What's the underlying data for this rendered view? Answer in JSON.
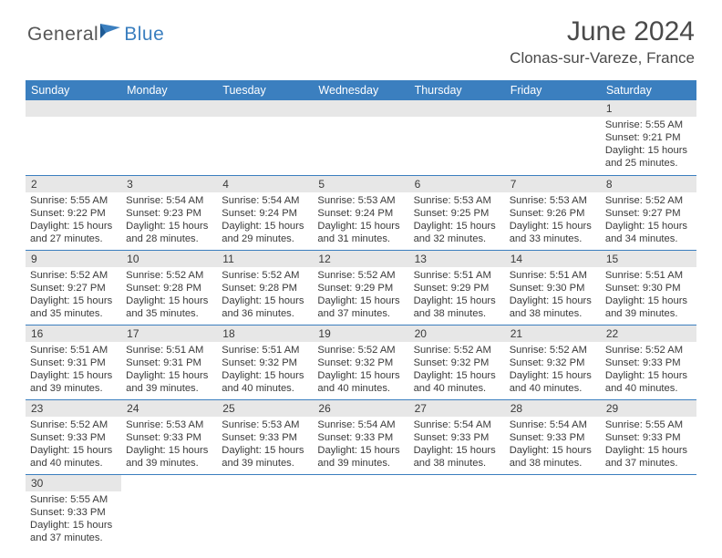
{
  "brand": {
    "part1": "General",
    "part2": "Blue"
  },
  "title": "June 2024",
  "location": "Clonas-sur-Vareze, France",
  "colors": {
    "headerBar": "#3b7fbf",
    "dayStripe": "#e7e7e7",
    "rowBorder": "#3b7fbf",
    "text": "#3a3a3a",
    "logoBlue": "#3b7fbf",
    "background": "#ffffff"
  },
  "weekdays": [
    "Sunday",
    "Monday",
    "Tuesday",
    "Wednesday",
    "Thursday",
    "Friday",
    "Saturday"
  ],
  "weeks": [
    [
      {
        "n": "",
        "sr": "",
        "ss": "",
        "dl": ""
      },
      {
        "n": "",
        "sr": "",
        "ss": "",
        "dl": ""
      },
      {
        "n": "",
        "sr": "",
        "ss": "",
        "dl": ""
      },
      {
        "n": "",
        "sr": "",
        "ss": "",
        "dl": ""
      },
      {
        "n": "",
        "sr": "",
        "ss": "",
        "dl": ""
      },
      {
        "n": "",
        "sr": "",
        "ss": "",
        "dl": ""
      },
      {
        "n": "1",
        "sr": "Sunrise: 5:55 AM",
        "ss": "Sunset: 9:21 PM",
        "dl": "Daylight: 15 hours and 25 minutes."
      }
    ],
    [
      {
        "n": "2",
        "sr": "Sunrise: 5:55 AM",
        "ss": "Sunset: 9:22 PM",
        "dl": "Daylight: 15 hours and 27 minutes."
      },
      {
        "n": "3",
        "sr": "Sunrise: 5:54 AM",
        "ss": "Sunset: 9:23 PM",
        "dl": "Daylight: 15 hours and 28 minutes."
      },
      {
        "n": "4",
        "sr": "Sunrise: 5:54 AM",
        "ss": "Sunset: 9:24 PM",
        "dl": "Daylight: 15 hours and 29 minutes."
      },
      {
        "n": "5",
        "sr": "Sunrise: 5:53 AM",
        "ss": "Sunset: 9:24 PM",
        "dl": "Daylight: 15 hours and 31 minutes."
      },
      {
        "n": "6",
        "sr": "Sunrise: 5:53 AM",
        "ss": "Sunset: 9:25 PM",
        "dl": "Daylight: 15 hours and 32 minutes."
      },
      {
        "n": "7",
        "sr": "Sunrise: 5:53 AM",
        "ss": "Sunset: 9:26 PM",
        "dl": "Daylight: 15 hours and 33 minutes."
      },
      {
        "n": "8",
        "sr": "Sunrise: 5:52 AM",
        "ss": "Sunset: 9:27 PM",
        "dl": "Daylight: 15 hours and 34 minutes."
      }
    ],
    [
      {
        "n": "9",
        "sr": "Sunrise: 5:52 AM",
        "ss": "Sunset: 9:27 PM",
        "dl": "Daylight: 15 hours and 35 minutes."
      },
      {
        "n": "10",
        "sr": "Sunrise: 5:52 AM",
        "ss": "Sunset: 9:28 PM",
        "dl": "Daylight: 15 hours and 35 minutes."
      },
      {
        "n": "11",
        "sr": "Sunrise: 5:52 AM",
        "ss": "Sunset: 9:28 PM",
        "dl": "Daylight: 15 hours and 36 minutes."
      },
      {
        "n": "12",
        "sr": "Sunrise: 5:52 AM",
        "ss": "Sunset: 9:29 PM",
        "dl": "Daylight: 15 hours and 37 minutes."
      },
      {
        "n": "13",
        "sr": "Sunrise: 5:51 AM",
        "ss": "Sunset: 9:29 PM",
        "dl": "Daylight: 15 hours and 38 minutes."
      },
      {
        "n": "14",
        "sr": "Sunrise: 5:51 AM",
        "ss": "Sunset: 9:30 PM",
        "dl": "Daylight: 15 hours and 38 minutes."
      },
      {
        "n": "15",
        "sr": "Sunrise: 5:51 AM",
        "ss": "Sunset: 9:30 PM",
        "dl": "Daylight: 15 hours and 39 minutes."
      }
    ],
    [
      {
        "n": "16",
        "sr": "Sunrise: 5:51 AM",
        "ss": "Sunset: 9:31 PM",
        "dl": "Daylight: 15 hours and 39 minutes."
      },
      {
        "n": "17",
        "sr": "Sunrise: 5:51 AM",
        "ss": "Sunset: 9:31 PM",
        "dl": "Daylight: 15 hours and 39 minutes."
      },
      {
        "n": "18",
        "sr": "Sunrise: 5:51 AM",
        "ss": "Sunset: 9:32 PM",
        "dl": "Daylight: 15 hours and 40 minutes."
      },
      {
        "n": "19",
        "sr": "Sunrise: 5:52 AM",
        "ss": "Sunset: 9:32 PM",
        "dl": "Daylight: 15 hours and 40 minutes."
      },
      {
        "n": "20",
        "sr": "Sunrise: 5:52 AM",
        "ss": "Sunset: 9:32 PM",
        "dl": "Daylight: 15 hours and 40 minutes."
      },
      {
        "n": "21",
        "sr": "Sunrise: 5:52 AM",
        "ss": "Sunset: 9:32 PM",
        "dl": "Daylight: 15 hours and 40 minutes."
      },
      {
        "n": "22",
        "sr": "Sunrise: 5:52 AM",
        "ss": "Sunset: 9:33 PM",
        "dl": "Daylight: 15 hours and 40 minutes."
      }
    ],
    [
      {
        "n": "23",
        "sr": "Sunrise: 5:52 AM",
        "ss": "Sunset: 9:33 PM",
        "dl": "Daylight: 15 hours and 40 minutes."
      },
      {
        "n": "24",
        "sr": "Sunrise: 5:53 AM",
        "ss": "Sunset: 9:33 PM",
        "dl": "Daylight: 15 hours and 39 minutes."
      },
      {
        "n": "25",
        "sr": "Sunrise: 5:53 AM",
        "ss": "Sunset: 9:33 PM",
        "dl": "Daylight: 15 hours and 39 minutes."
      },
      {
        "n": "26",
        "sr": "Sunrise: 5:54 AM",
        "ss": "Sunset: 9:33 PM",
        "dl": "Daylight: 15 hours and 39 minutes."
      },
      {
        "n": "27",
        "sr": "Sunrise: 5:54 AM",
        "ss": "Sunset: 9:33 PM",
        "dl": "Daylight: 15 hours and 38 minutes."
      },
      {
        "n": "28",
        "sr": "Sunrise: 5:54 AM",
        "ss": "Sunset: 9:33 PM",
        "dl": "Daylight: 15 hours and 38 minutes."
      },
      {
        "n": "29",
        "sr": "Sunrise: 5:55 AM",
        "ss": "Sunset: 9:33 PM",
        "dl": "Daylight: 15 hours and 37 minutes."
      }
    ],
    [
      {
        "n": "30",
        "sr": "Sunrise: 5:55 AM",
        "ss": "Sunset: 9:33 PM",
        "dl": "Daylight: 15 hours and 37 minutes."
      },
      {
        "n": "",
        "sr": "",
        "ss": "",
        "dl": ""
      },
      {
        "n": "",
        "sr": "",
        "ss": "",
        "dl": ""
      },
      {
        "n": "",
        "sr": "",
        "ss": "",
        "dl": ""
      },
      {
        "n": "",
        "sr": "",
        "ss": "",
        "dl": ""
      },
      {
        "n": "",
        "sr": "",
        "ss": "",
        "dl": ""
      },
      {
        "n": "",
        "sr": "",
        "ss": "",
        "dl": ""
      }
    ]
  ]
}
